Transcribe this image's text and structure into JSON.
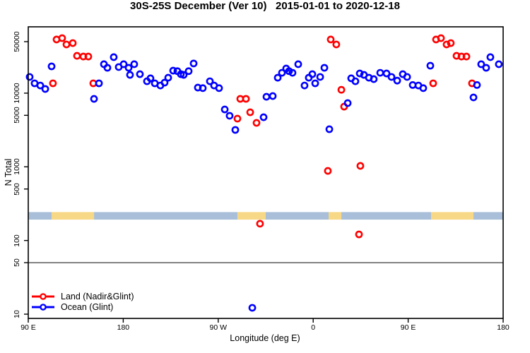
{
  "title": "30S-25S December (Ver 10)   2015-01-01 to 2020-12-18",
  "legend": {
    "items": [
      {
        "label": "Land (Nadir&Glint)",
        "color": "#ff0000"
      },
      {
        "label": "Ocean (Glint)",
        "color": "#0000ff"
      }
    ]
  },
  "colors": {
    "land_point": "#ff0000",
    "ocean_point": "#0000ff",
    "band_land": "#f7d886",
    "band_ocean": "#a9bfd9",
    "axis": "#000000",
    "threshold_line": "#4a4a4a"
  },
  "chart_data": {
    "type": "scatter",
    "title": "30S-25S December (Ver 10)   2015-01-01 to 2020-12-18",
    "xlabel": "Longitude (deg E)",
    "ylabel": "N Total",
    "y_scale": "log10",
    "x_axis_note": "axis_deg runs 0-450 from left edge (90 E) eastward; first 90 deg of data repeats at right",
    "x_ticks": [
      {
        "deg": 0,
        "label": "90 E"
      },
      {
        "deg": 90,
        "label": "180"
      },
      {
        "deg": 180,
        "label": "90 W"
      },
      {
        "deg": 270,
        "label": "0"
      },
      {
        "deg": 360,
        "label": "90 E"
      },
      {
        "deg": 450,
        "label": "180"
      }
    ],
    "y_ticks": [
      {
        "value": 10,
        "label": "10"
      },
      {
        "value": 50,
        "label": "50"
      },
      {
        "value": 100,
        "label": "100"
      },
      {
        "value": 500,
        "label": "500"
      },
      {
        "value": 1000,
        "label": "1000"
      },
      {
        "value": 5000,
        "label": "5000"
      },
      {
        "value": 10000,
        "label": "10000"
      },
      {
        "value": 50000,
        "label": "50000"
      }
    ],
    "ylim": [
      8.8,
      79000
    ],
    "threshold_line_value": 50,
    "surface_band": {
      "value_top": 243,
      "value_bottom": 192,
      "segments": [
        {
          "deg": [
            0,
            22.1
          ],
          "surface": "ocean"
        },
        {
          "deg": [
            22.1,
            62.3
          ],
          "surface": "land"
        },
        {
          "deg": [
            62.3,
            198.2
          ],
          "surface": "ocean"
        },
        {
          "deg": [
            198.2,
            225.0
          ],
          "surface": "land"
        },
        {
          "deg": [
            225.0,
            284.6
          ],
          "surface": "ocean"
        },
        {
          "deg": [
            284.6,
            296.7
          ],
          "surface": "land"
        },
        {
          "deg": [
            296.7,
            381.7
          ],
          "surface": "ocean"
        },
        {
          "deg": [
            381.7,
            421.9
          ],
          "surface": "land"
        },
        {
          "deg": [
            421.9,
            450
          ],
          "surface": "ocean"
        }
      ]
    },
    "series": [
      {
        "name": "Land (Nadir&Glint)",
        "color": "#ff0000",
        "points": [
          [
            23.4,
            13600
          ],
          [
            26.8,
            53500
          ],
          [
            32.1,
            55800
          ],
          [
            36.2,
            45800
          ],
          [
            42.2,
            47800
          ],
          [
            46.2,
            32100
          ],
          [
            52.2,
            31400
          ],
          [
            56.9,
            31400
          ],
          [
            61.6,
            13600
          ],
          [
            198.2,
            4510
          ],
          [
            200.9,
            8370
          ],
          [
            206.3,
            8370
          ],
          [
            210.3,
            5500
          ],
          [
            216.3,
            3950
          ],
          [
            219.6,
            169
          ],
          [
            283.9,
            880
          ],
          [
            286.6,
            53500
          ],
          [
            291.9,
            45800
          ],
          [
            296.7,
            11100
          ],
          [
            299.3,
            6560
          ],
          [
            313.4,
            121
          ],
          [
            314.7,
            1030
          ],
          [
            383.7,
            13600
          ],
          [
            386.4,
            53500
          ],
          [
            391.1,
            55800
          ],
          [
            396.4,
            45800
          ],
          [
            400.4,
            47800
          ],
          [
            405.8,
            32100
          ],
          [
            410.5,
            31400
          ],
          [
            415.2,
            31400
          ],
          [
            420.5,
            13600
          ]
        ]
      },
      {
        "name": "Ocean (Glint)",
        "color": "#0000ff",
        "points": [
          [
            1.3,
            16600
          ],
          [
            6.0,
            13600
          ],
          [
            11.4,
            12700
          ],
          [
            16.1,
            11400
          ],
          [
            22.1,
            23100
          ],
          [
            62.3,
            8360
          ],
          [
            67.0,
            13600
          ],
          [
            71.7,
            24700
          ],
          [
            75.0,
            22100
          ],
          [
            81.0,
            30800
          ],
          [
            85.7,
            22600
          ],
          [
            90.4,
            24700
          ],
          [
            95.1,
            22100
          ],
          [
            96.4,
            17700
          ],
          [
            100.4,
            24700
          ],
          [
            105.8,
            18100
          ],
          [
            112.5,
            14500
          ],
          [
            115.8,
            15900
          ],
          [
            119.9,
            13600
          ],
          [
            125.2,
            12700
          ],
          [
            129.2,
            13900
          ],
          [
            132.6,
            16200
          ],
          [
            137.3,
            20200
          ],
          [
            141.3,
            19900
          ],
          [
            144.6,
            18100
          ],
          [
            147.3,
            17700
          ],
          [
            152.0,
            19900
          ],
          [
            156.7,
            25300
          ],
          [
            160.7,
            11900
          ],
          [
            165.4,
            11700
          ],
          [
            172.1,
            14500
          ],
          [
            176.1,
            12700
          ],
          [
            180.8,
            11700
          ],
          [
            186.2,
            6010
          ],
          [
            190.8,
            4930
          ],
          [
            196.2,
            3170
          ],
          [
            212.3,
            12.2
          ],
          [
            223.0,
            4710
          ],
          [
            225.7,
            8930
          ],
          [
            231.7,
            9130
          ],
          [
            236.4,
            16200
          ],
          [
            240.4,
            18900
          ],
          [
            244.4,
            21600
          ],
          [
            247.1,
            19900
          ],
          [
            250.4,
            18900
          ],
          [
            255.8,
            24700
          ],
          [
            261.8,
            12700
          ],
          [
            265.8,
            16200
          ],
          [
            269.2,
            18100
          ],
          [
            271.9,
            13600
          ],
          [
            276.6,
            16600
          ],
          [
            280.6,
            22100
          ],
          [
            285.3,
            3240
          ],
          [
            302.7,
            7330
          ],
          [
            306.0,
            15900
          ],
          [
            310.0,
            14500
          ],
          [
            314.1,
            18500
          ],
          [
            318.1,
            17700
          ],
          [
            322.8,
            16200
          ],
          [
            327.4,
            15500
          ],
          [
            333.5,
            18900
          ],
          [
            339.5,
            18500
          ],
          [
            344.2,
            16600
          ],
          [
            349.6,
            14800
          ],
          [
            354.9,
            18100
          ],
          [
            359.0,
            16600
          ],
          [
            364.3,
            12900
          ],
          [
            369.7,
            12700
          ],
          [
            374.3,
            11700
          ],
          [
            381.0,
            23600
          ],
          [
            421.9,
            8750
          ],
          [
            425.2,
            12900
          ],
          [
            429.2,
            24700
          ],
          [
            433.9,
            22100
          ],
          [
            437.9,
            30800
          ],
          [
            445.9,
            24700
          ]
        ]
      }
    ]
  }
}
